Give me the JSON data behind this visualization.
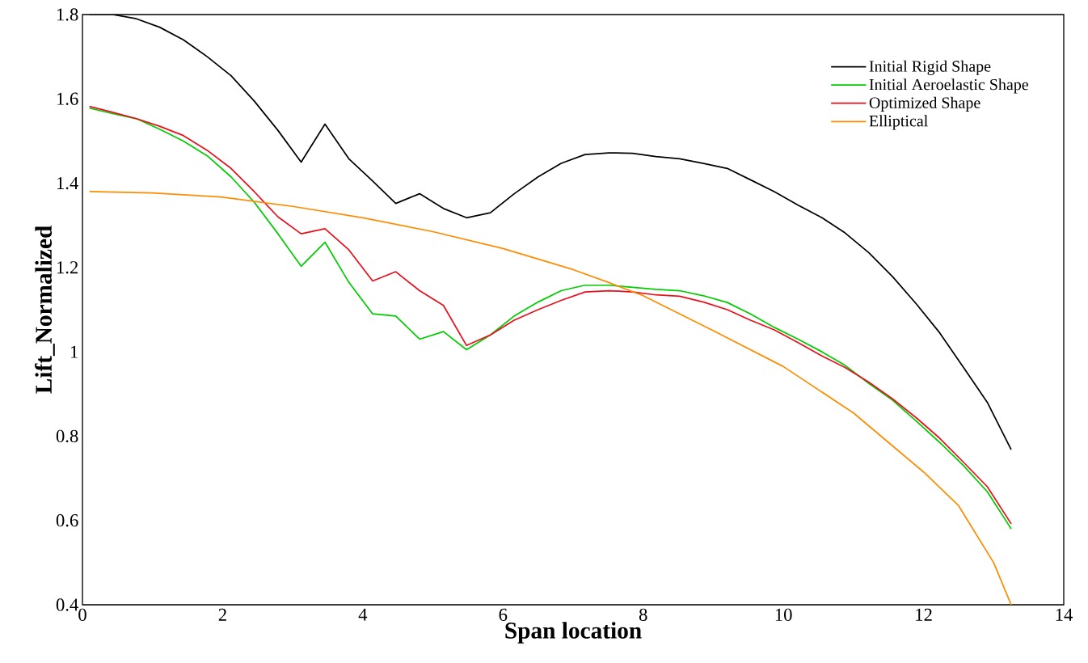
{
  "chart_data": {
    "type": "line",
    "xlabel": "Span location",
    "ylabel": "Lift_Normalized",
    "xlim": [
      0,
      14
    ],
    "ylim": [
      0.4,
      1.8
    ],
    "xticks": [
      0,
      2,
      4,
      6,
      8,
      10,
      12,
      14
    ],
    "yticks": [
      0.4,
      0.6,
      0.8,
      1,
      1.2,
      1.4,
      1.6,
      1.8
    ],
    "grid": false,
    "legend": "top right",
    "marker": "none",
    "line_style": "solid",
    "series": [
      {
        "name": "Initial Rigid Shape",
        "color": "#000000",
        "x": [
          0.1,
          0.43,
          0.77,
          1.1,
          1.44,
          1.78,
          2.12,
          2.45,
          2.79,
          3.12,
          3.46,
          3.8,
          4.14,
          4.47,
          4.81,
          5.15,
          5.48,
          5.82,
          6.16,
          6.5,
          6.83,
          7.17,
          7.51,
          7.85,
          8.18,
          8.52,
          8.86,
          9.2,
          9.53,
          9.87,
          10.21,
          10.55,
          10.88,
          11.22,
          11.56,
          11.9,
          12.23,
          12.57,
          12.91,
          13.25
        ],
        "values": [
          1.8,
          1.8,
          1.79,
          1.77,
          1.74,
          1.7,
          1.655,
          1.595,
          1.525,
          1.45,
          1.54,
          1.458,
          1.405,
          1.352,
          1.375,
          1.34,
          1.318,
          1.33,
          1.375,
          1.415,
          1.447,
          1.468,
          1.472,
          1.471,
          1.463,
          1.458,
          1.447,
          1.435,
          1.408,
          1.38,
          1.348,
          1.318,
          1.282,
          1.235,
          1.178,
          1.113,
          1.045,
          0.963,
          0.88,
          0.768
        ]
      },
      {
        "name": "Initial Aeroelastic Shape",
        "color": "#00cc00",
        "x": [
          0.1,
          0.43,
          0.77,
          1.1,
          1.44,
          1.78,
          2.12,
          2.45,
          2.79,
          3.12,
          3.46,
          3.8,
          4.14,
          4.47,
          4.81,
          5.15,
          5.48,
          5.82,
          6.16,
          6.5,
          6.83,
          7.17,
          7.51,
          7.85,
          8.18,
          8.52,
          8.86,
          9.2,
          9.53,
          9.87,
          10.21,
          10.55,
          10.88,
          11.22,
          11.56,
          11.9,
          12.23,
          12.57,
          12.91,
          13.25
        ],
        "values": [
          1.578,
          1.565,
          1.553,
          1.528,
          1.5,
          1.465,
          1.415,
          1.355,
          1.28,
          1.203,
          1.26,
          1.165,
          1.09,
          1.085,
          1.03,
          1.048,
          1.005,
          1.04,
          1.085,
          1.118,
          1.145,
          1.158,
          1.158,
          1.153,
          1.148,
          1.145,
          1.133,
          1.117,
          1.09,
          1.058,
          1.03,
          1.0,
          0.968,
          0.925,
          0.885,
          0.835,
          0.785,
          0.73,
          0.668,
          0.58
        ]
      },
      {
        "name": "Optimized Shape",
        "color": "#e8101c",
        "x": [
          0.1,
          0.43,
          0.77,
          1.1,
          1.44,
          1.78,
          2.12,
          2.45,
          2.79,
          3.12,
          3.46,
          3.8,
          4.14,
          4.47,
          4.81,
          5.15,
          5.48,
          5.82,
          6.16,
          6.5,
          6.83,
          7.17,
          7.51,
          7.85,
          8.18,
          8.52,
          8.86,
          9.2,
          9.53,
          9.87,
          10.21,
          10.55,
          10.88,
          11.22,
          11.56,
          11.9,
          12.23,
          12.57,
          12.91,
          13.25
        ],
        "values": [
          1.582,
          1.568,
          1.553,
          1.535,
          1.513,
          1.478,
          1.435,
          1.38,
          1.32,
          1.28,
          1.292,
          1.242,
          1.168,
          1.19,
          1.145,
          1.11,
          1.015,
          1.04,
          1.075,
          1.1,
          1.122,
          1.142,
          1.145,
          1.142,
          1.135,
          1.132,
          1.118,
          1.1,
          1.075,
          1.052,
          1.022,
          0.99,
          0.963,
          0.928,
          0.888,
          0.843,
          0.795,
          0.738,
          0.68,
          0.592
        ]
      },
      {
        "name": "Elliptical",
        "color": "#ff8c00",
        "x": [
          0.1,
          1,
          2,
          3,
          4,
          5,
          6,
          7,
          7.5,
          8,
          9,
          10,
          11,
          12,
          12.5,
          13,
          13.25
        ],
        "values": [
          1.38,
          1.377,
          1.367,
          1.345,
          1.318,
          1.285,
          1.245,
          1.195,
          1.165,
          1.133,
          1.05,
          0.965,
          0.855,
          0.715,
          0.635,
          0.5,
          0.4
        ]
      }
    ]
  }
}
